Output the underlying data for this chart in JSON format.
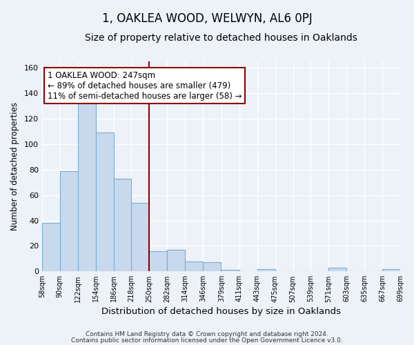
{
  "title": "1, OAKLEA WOOD, WELWYN, AL6 0PJ",
  "subtitle": "Size of property relative to detached houses in Oaklands",
  "xlabel": "Distribution of detached houses by size in Oaklands",
  "ylabel": "Number of detached properties",
  "bar_values": [
    38,
    79,
    133,
    109,
    73,
    54,
    16,
    17,
    8,
    7,
    1,
    0,
    2,
    0,
    0,
    0,
    3,
    0,
    0,
    2
  ],
  "bin_left": [
    58,
    90,
    122,
    154,
    186,
    218,
    250,
    282,
    314,
    346,
    379,
    411,
    443,
    475,
    507,
    539,
    571,
    603,
    635,
    667
  ],
  "bin_width": 32,
  "xmin": 58,
  "xmax": 699,
  "tick_positions": [
    58,
    90,
    122,
    154,
    186,
    218,
    250,
    282,
    314,
    346,
    379,
    411,
    443,
    475,
    507,
    539,
    571,
    603,
    635,
    667,
    699
  ],
  "tick_labels": [
    "58sqm",
    "90sqm",
    "122sqm",
    "154sqm",
    "186sqm",
    "218sqm",
    "250sqm",
    "282sqm",
    "314sqm",
    "346sqm",
    "379sqm",
    "411sqm",
    "443sqm",
    "475sqm",
    "507sqm",
    "539sqm",
    "571sqm",
    "603sqm",
    "635sqm",
    "667sqm",
    "699sqm"
  ],
  "bar_color": "#c8d9ee",
  "bar_edge_color": "#7aadcf",
  "vline_x": 250,
  "vline_color": "#8b0000",
  "annotation_text": "1 OAKLEA WOOD: 247sqm\n← 89% of detached houses are smaller (479)\n11% of semi-detached houses are larger (58) →",
  "annotation_box_color": "#ffffff",
  "annotation_box_edge": "#8b0000",
  "ylim": [
    0,
    165
  ],
  "yticks": [
    0,
    20,
    40,
    60,
    80,
    100,
    120,
    140,
    160
  ],
  "footer1": "Contains HM Land Registry data © Crown copyright and database right 2024.",
  "footer2": "Contains public sector information licensed under the Open Government Licence v3.0.",
  "background_color": "#edf1f8",
  "grid_color": "#ffffff",
  "title_fontsize": 12,
  "subtitle_fontsize": 10,
  "xlabel_fontsize": 9.5,
  "ylabel_fontsize": 8.5,
  "tick_fontsize": 7,
  "annotation_fontsize": 8.5,
  "footer_fontsize": 6.5
}
